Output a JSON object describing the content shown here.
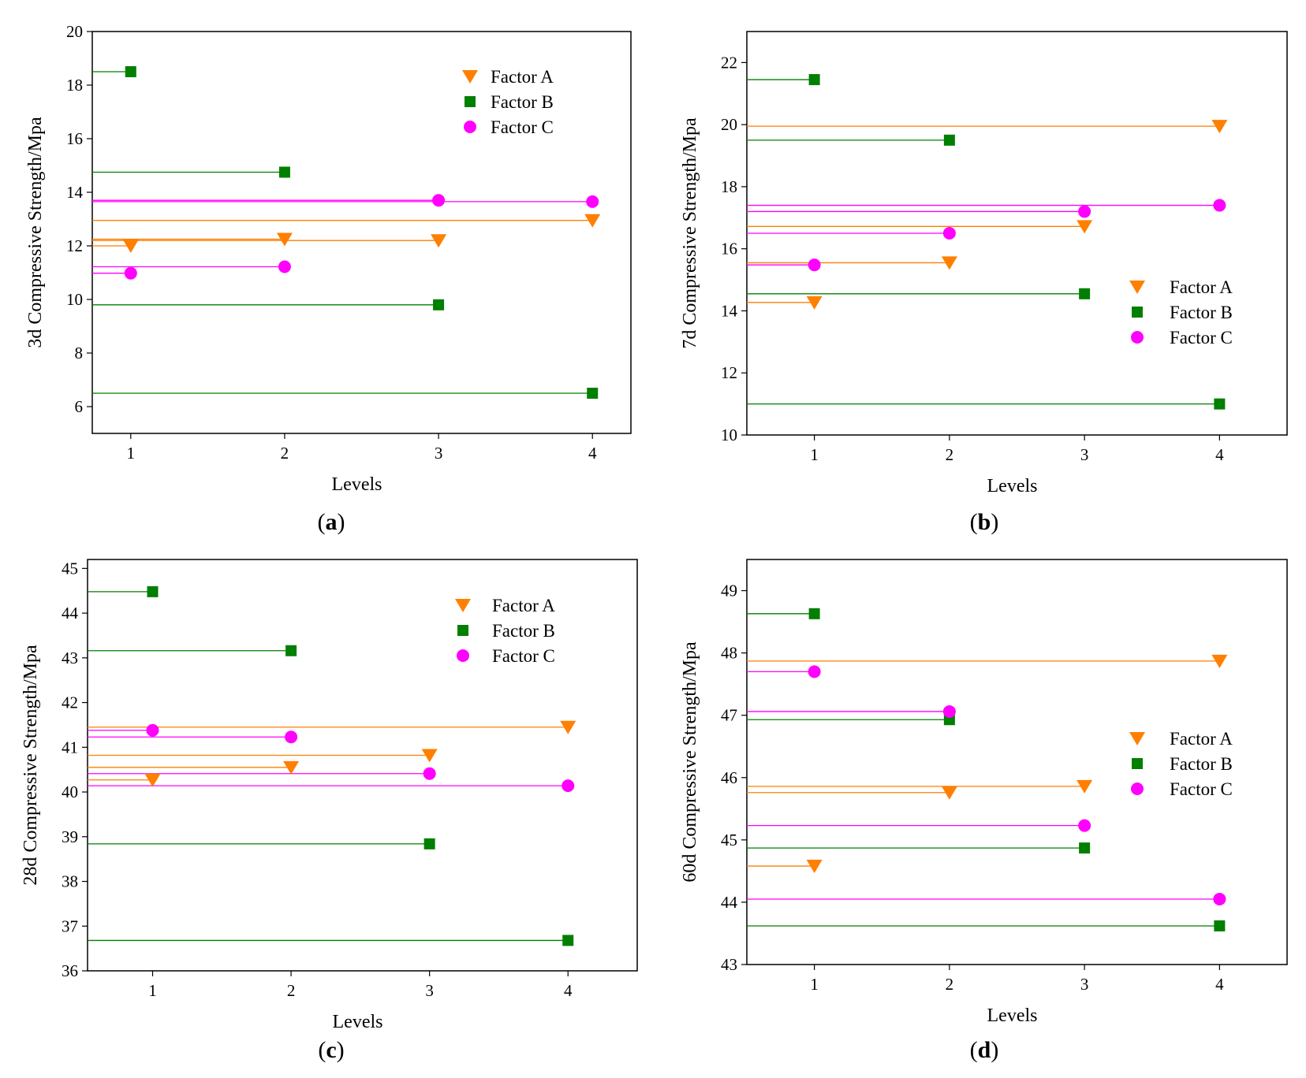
{
  "colors": {
    "factor_a": "#FF7F00",
    "factor_b": "#007F00",
    "factor_c": "#FF00FF"
  },
  "chart_data": [
    {
      "type": "scatter",
      "caption_letter": "a",
      "xlabel": "Levels",
      "ylabel": "3d Compressive Strength/Mpa",
      "x_ticks": [
        1,
        2,
        3,
        4
      ],
      "xlim": [
        0.75,
        4.25
      ],
      "ylim": [
        5,
        20
      ],
      "y_ticks": [
        6,
        8,
        10,
        12,
        14,
        16,
        18,
        20
      ],
      "legend_position": "top-right",
      "series": [
        {
          "name": "Factor A",
          "marker": "triangle-down",
          "x": [
            1,
            2,
            3,
            4
          ],
          "y": [
            12.0,
            12.25,
            12.2,
            12.95
          ]
        },
        {
          "name": "Factor B",
          "marker": "square",
          "x": [
            1,
            2,
            3,
            4
          ],
          "y": [
            18.5,
            14.75,
            9.8,
            6.5
          ]
        },
        {
          "name": "Factor C",
          "marker": "circle",
          "x": [
            1,
            2,
            3,
            4
          ],
          "y": [
            10.98,
            11.22,
            13.7,
            13.65
          ]
        }
      ]
    },
    {
      "type": "scatter",
      "caption_letter": "b",
      "xlabel": "Levels",
      "ylabel": "7d Compressive Strength/Mpa",
      "x_ticks": [
        1,
        2,
        3,
        4
      ],
      "xlim": [
        0.5,
        4.5
      ],
      "ylim": [
        10,
        23
      ],
      "y_ticks": [
        10,
        12,
        14,
        16,
        18,
        20,
        22
      ],
      "legend_position": "center-right",
      "series": [
        {
          "name": "Factor A",
          "marker": "triangle-down",
          "x": [
            1,
            2,
            3,
            4
          ],
          "y": [
            14.27,
            15.55,
            16.72,
            19.95
          ]
        },
        {
          "name": "Factor B",
          "marker": "square",
          "x": [
            1,
            2,
            3,
            4
          ],
          "y": [
            21.45,
            19.5,
            14.55,
            11.0
          ]
        },
        {
          "name": "Factor C",
          "marker": "circle",
          "x": [
            1,
            2,
            3,
            4
          ],
          "y": [
            15.48,
            16.5,
            17.2,
            17.4
          ]
        }
      ]
    },
    {
      "type": "scatter",
      "caption_letter": "c",
      "xlabel": "Levels",
      "ylabel": "28d Compressive Strength/Mpa",
      "x_ticks": [
        1,
        2,
        3,
        4
      ],
      "xlim": [
        0.53,
        4.5
      ],
      "ylim": [
        36,
        45.2
      ],
      "y_ticks": [
        36,
        37,
        38,
        39,
        40,
        41,
        42,
        43,
        44,
        45
      ],
      "legend_position": "top-right",
      "series": [
        {
          "name": "Factor A",
          "marker": "triangle-down",
          "x": [
            1,
            2,
            3,
            4
          ],
          "y": [
            40.27,
            40.55,
            40.82,
            41.45
          ]
        },
        {
          "name": "Factor B",
          "marker": "square",
          "x": [
            1,
            2,
            3,
            4
          ],
          "y": [
            44.48,
            43.16,
            38.84,
            36.68
          ]
        },
        {
          "name": "Factor C",
          "marker": "circle",
          "x": [
            1,
            2,
            3,
            4
          ],
          "y": [
            41.38,
            41.23,
            40.41,
            40.14
          ]
        }
      ]
    },
    {
      "type": "scatter",
      "caption_letter": "d",
      "xlabel": "Levels",
      "ylabel": "60d Compressive Strength/Mpa",
      "x_ticks": [
        1,
        2,
        3,
        4
      ],
      "xlim": [
        0.5,
        4.5
      ],
      "ylim": [
        43,
        49.5
      ],
      "y_ticks": [
        43,
        44,
        45,
        46,
        47,
        48,
        49
      ],
      "legend_position": "center-right",
      "series": [
        {
          "name": "Factor A",
          "marker": "triangle-down",
          "x": [
            1,
            2,
            3,
            4
          ],
          "y": [
            44.58,
            45.76,
            45.86,
            47.87
          ]
        },
        {
          "name": "Factor B",
          "marker": "square",
          "x": [
            1,
            2,
            3,
            4
          ],
          "y": [
            48.63,
            46.93,
            44.87,
            43.62
          ]
        },
        {
          "name": "Factor C",
          "marker": "circle",
          "x": [
            1,
            2,
            3,
            4
          ],
          "y": [
            47.7,
            47.06,
            45.23,
            44.05
          ]
        }
      ]
    }
  ]
}
